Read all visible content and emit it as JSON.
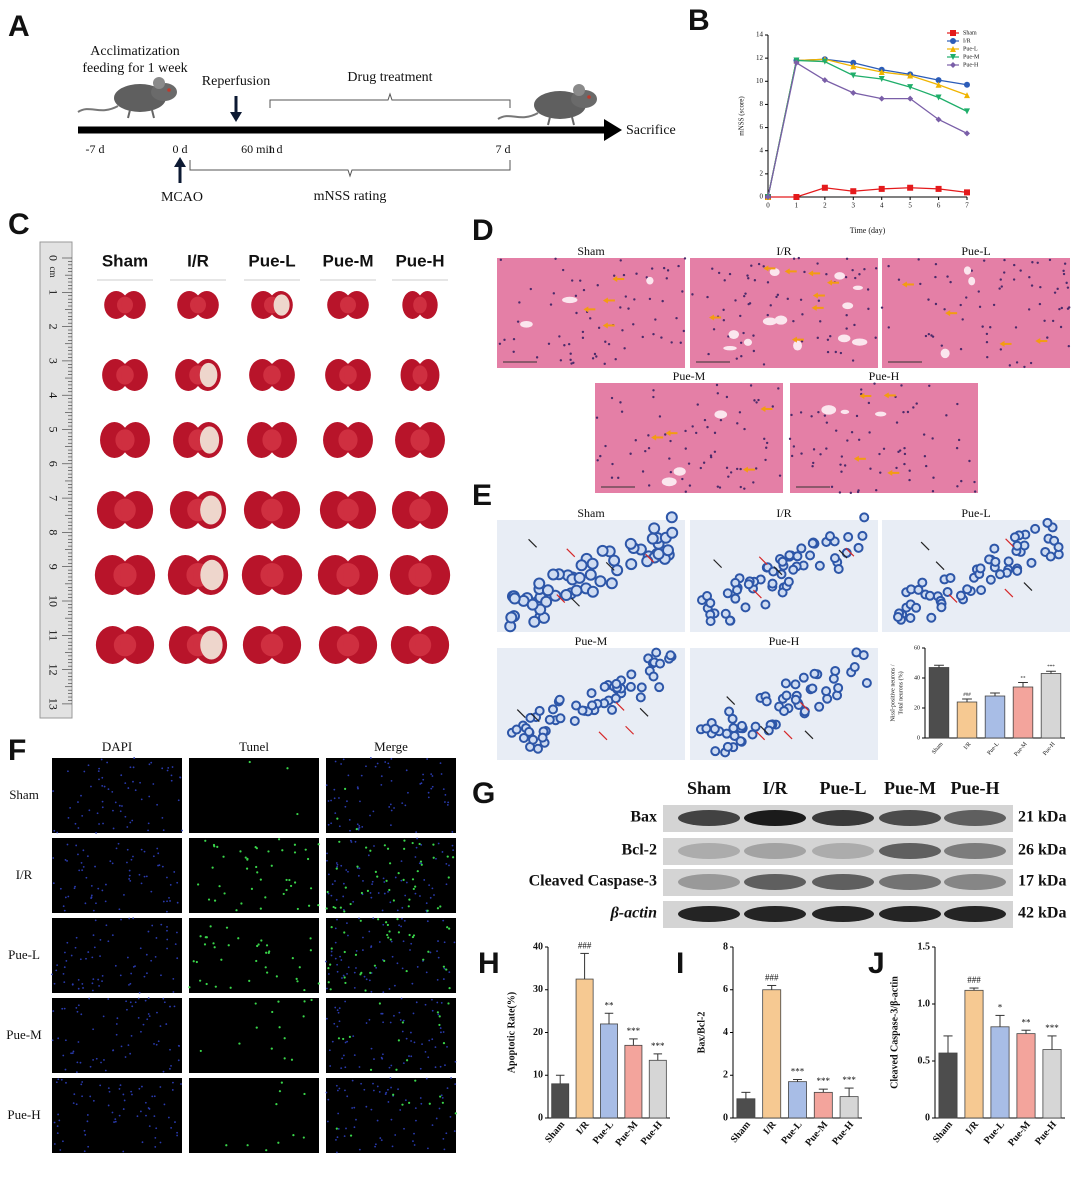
{
  "panel_labels": [
    "A",
    "B",
    "C",
    "D",
    "E",
    "F",
    "G",
    "H",
    "I",
    "J"
  ],
  "panel_a": {
    "acclimatization": [
      "Acclimatization",
      "feeding for 1 week"
    ],
    "reperfusion": "Reperfusion",
    "drug_treatment": "Drug treatment",
    "sacrifice": "Sacrifice",
    "mcao": "MCAO",
    "mnss_rating": "mNSS rating",
    "time_labels": [
      "-7 d",
      "0 d",
      "60 min",
      "1 d",
      "7 d"
    ]
  },
  "panel_c": {
    "groups": [
      "Sham",
      "I/R",
      "Pue-L",
      "Pue-M",
      "Pue-H"
    ],
    "ruler_unit": "cm",
    "ruler_numbers": [
      0,
      1,
      2,
      3,
      4,
      5,
      6,
      7,
      8,
      9,
      10,
      11,
      12,
      13
    ]
  },
  "panel_d": {
    "groups": [
      "Sham",
      "I/R",
      "Pue-L",
      "Pue-M",
      "Pue-H"
    ]
  },
  "panel_e": {
    "groups": [
      "Sham",
      "I/R",
      "Pue-L",
      "Pue-M",
      "Pue-H"
    ]
  },
  "panel_f": {
    "channels": [
      "DAPI",
      "Tunel",
      "Merge"
    ],
    "groups": [
      "Sham",
      "I/R",
      "Pue-L",
      "Pue-M",
      "Pue-H"
    ]
  },
  "panel_g": {
    "groups": [
      "Sham",
      "I/R",
      "Pue-L",
      "Pue-M",
      "Pue-H"
    ],
    "proteins": [
      {
        "name": "Bax",
        "size": "21 kDa"
      },
      {
        "name": "Bcl-2",
        "size": "26 kDa"
      },
      {
        "name": "Cleaved Caspase-3",
        "size": "17 kDa"
      },
      {
        "name": "β-actin",
        "size": "42 kDa"
      }
    ]
  },
  "chart_data": [
    {
      "type": "line",
      "x_label": "Time (day)",
      "y_label": "mNSS (score)",
      "x": [
        0,
        1,
        2,
        3,
        4,
        5,
        6,
        7
      ],
      "xlim": [
        0,
        7
      ],
      "xticks": [
        0,
        1,
        2,
        3,
        4,
        5,
        6,
        7
      ],
      "ylim": [
        0,
        14
      ],
      "yticks": [
        0,
        2,
        4,
        6,
        8,
        10,
        12,
        14
      ],
      "legend": "top-right",
      "series": [
        {
          "name": "Sham",
          "color": "#e41a1c",
          "marker": "square",
          "values": [
            0,
            0,
            0.8,
            0.5,
            0.7,
            0.8,
            0.7,
            0.4
          ]
        },
        {
          "name": "I/R",
          "color": "#2b5cb8",
          "marker": "circle",
          "values": [
            0,
            11.8,
            11.9,
            11.6,
            11.0,
            10.6,
            10.1,
            9.7
          ]
        },
        {
          "name": "Pue-L",
          "color": "#f0b400",
          "marker": "triangle",
          "values": [
            0,
            11.8,
            11.9,
            11.3,
            10.8,
            10.5,
            9.7,
            8.8
          ]
        },
        {
          "name": "Pue-M",
          "color": "#1fae6a",
          "marker": "triangle-down",
          "values": [
            0,
            11.8,
            11.7,
            10.5,
            10.2,
            9.5,
            8.6,
            7.4
          ]
        },
        {
          "name": "Pue-H",
          "color": "#7a5fa8",
          "marker": "diamond",
          "values": [
            0,
            11.6,
            10.1,
            9.0,
            8.5,
            8.5,
            6.7,
            5.5
          ]
        }
      ]
    },
    {
      "type": "bar",
      "y_label": [
        "Nissl-positive neurons /",
        "Total neurons (%)"
      ],
      "categories": [
        "Sham",
        "I/R",
        "Pue-L",
        "Pue-M",
        "Pue-H"
      ],
      "values": [
        47,
        24,
        28,
        34,
        43
      ],
      "errors": [
        1.5,
        2,
        2,
        3,
        1.5
      ],
      "colors": [
        "#4d4d4d",
        "#f6c992",
        "#a8bde6",
        "#f3a49c",
        "#d6d6d6"
      ],
      "sig_labels": [
        null,
        "###",
        null,
        "**",
        "***"
      ],
      "ylim": [
        0,
        60
      ],
      "yticks": [
        0,
        20,
        40,
        60
      ]
    },
    {
      "type": "bar",
      "y_label": [
        "Apoptotic Rate(%)"
      ],
      "categories": [
        "Sham",
        "I/R",
        "Pue-L",
        "Pue-M",
        "Pue-H"
      ],
      "values": [
        8,
        32.5,
        22,
        17,
        13.5
      ],
      "errors": [
        2,
        6,
        2.5,
        1.5,
        1.5
      ],
      "colors": [
        "#4d4d4d",
        "#f6c992",
        "#a8bde6",
        "#f3a49c",
        "#d6d6d6"
      ],
      "sig_labels": [
        null,
        "###",
        "**",
        "***",
        "***"
      ],
      "ylim": [
        0,
        40
      ],
      "yticks": [
        0,
        10,
        20,
        30,
        40
      ]
    },
    {
      "type": "bar",
      "y_label": [
        "Bax/Bcl-2"
      ],
      "categories": [
        "Sham",
        "I/R",
        "Pue-L",
        "Pue-M",
        "Pue-H"
      ],
      "values": [
        0.9,
        6.0,
        1.7,
        1.2,
        1.0
      ],
      "errors": [
        0.3,
        0.2,
        0.1,
        0.15,
        0.4
      ],
      "colors": [
        "#4d4d4d",
        "#f6c992",
        "#a8bde6",
        "#f3a49c",
        "#d6d6d6"
      ],
      "sig_labels": [
        null,
        "###",
        "***",
        "***",
        "***"
      ],
      "ylim": [
        0,
        8
      ],
      "yticks": [
        0,
        2,
        4,
        6,
        8
      ]
    },
    {
      "type": "bar",
      "y_label": [
        "Cleaved Caspase-3/β-actin"
      ],
      "categories": [
        "Sham",
        "I/R",
        "Pue-L",
        "Pue-M",
        "Pue-H"
      ],
      "values": [
        0.57,
        1.12,
        0.8,
        0.74,
        0.6
      ],
      "errors": [
        0.15,
        0.02,
        0.1,
        0.03,
        0.12
      ],
      "colors": [
        "#4d4d4d",
        "#f6c992",
        "#a8bde6",
        "#f3a49c",
        "#d6d6d6"
      ],
      "sig_labels": [
        null,
        "###",
        "*",
        "**",
        "***"
      ],
      "ylim": [
        0,
        1.5
      ],
      "yticks": [
        0,
        0.5,
        {
          "value": 1,
          "label": "1.0"
        },
        1.5
      ]
    }
  ]
}
